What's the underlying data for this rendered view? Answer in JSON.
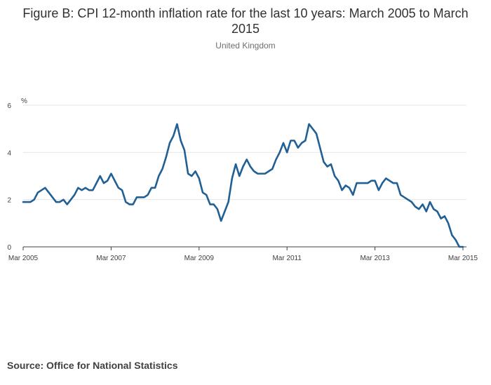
{
  "chart_data": {
    "type": "line",
    "title": "Figure B: CPI 12-month inflation rate for the last 10 years: March 2005 to March 2015",
    "subtitle": "United Kingdom",
    "ylabel": "%",
    "xlabel": "",
    "ylim": [
      0,
      6
    ],
    "yticks": [
      0,
      2,
      4,
      6
    ],
    "xticks": [
      {
        "label": "Mar 2005",
        "index": 0
      },
      {
        "label": "Mar 2007",
        "index": 24
      },
      {
        "label": "Mar 2009",
        "index": 48
      },
      {
        "label": "Mar 2011",
        "index": 72
      },
      {
        "label": "Mar 2013",
        "index": 96
      },
      {
        "label": "Mar 2015",
        "index": 120
      }
    ],
    "grid": true,
    "color": "#206095",
    "series": [
      {
        "name": "CPI 12-month rate",
        "start": "Mar 2005",
        "frequency": "monthly",
        "values": [
          1.9,
          1.9,
          1.9,
          2.0,
          2.3,
          2.4,
          2.5,
          2.3,
          2.1,
          1.9,
          1.9,
          2.0,
          1.8,
          2.0,
          2.2,
          2.5,
          2.4,
          2.5,
          2.4,
          2.4,
          2.7,
          3.0,
          2.7,
          2.8,
          3.1,
          2.8,
          2.5,
          2.4,
          1.9,
          1.8,
          1.8,
          2.1,
          2.1,
          2.1,
          2.2,
          2.5,
          2.5,
          3.0,
          3.3,
          3.8,
          4.4,
          4.7,
          5.2,
          4.5,
          4.1,
          3.1,
          3.0,
          3.2,
          2.9,
          2.3,
          2.2,
          1.8,
          1.8,
          1.6,
          1.1,
          1.5,
          1.9,
          2.9,
          3.5,
          3.0,
          3.4,
          3.7,
          3.4,
          3.2,
          3.1,
          3.1,
          3.1,
          3.2,
          3.3,
          3.7,
          4.0,
          4.4,
          4.0,
          4.5,
          4.5,
          4.2,
          4.4,
          4.5,
          5.2,
          5.0,
          4.8,
          4.2,
          3.6,
          3.4,
          3.5,
          3.0,
          2.8,
          2.4,
          2.6,
          2.5,
          2.2,
          2.7,
          2.7,
          2.7,
          2.7,
          2.8,
          2.8,
          2.4,
          2.7,
          2.9,
          2.8,
          2.7,
          2.7,
          2.2,
          2.1,
          2.0,
          1.9,
          1.7,
          1.6,
          1.8,
          1.5,
          1.9,
          1.6,
          1.5,
          1.2,
          1.3,
          1.0,
          0.5,
          0.3,
          0.0,
          0.0
        ]
      }
    ]
  },
  "source": "Source: Office for National Statistics"
}
